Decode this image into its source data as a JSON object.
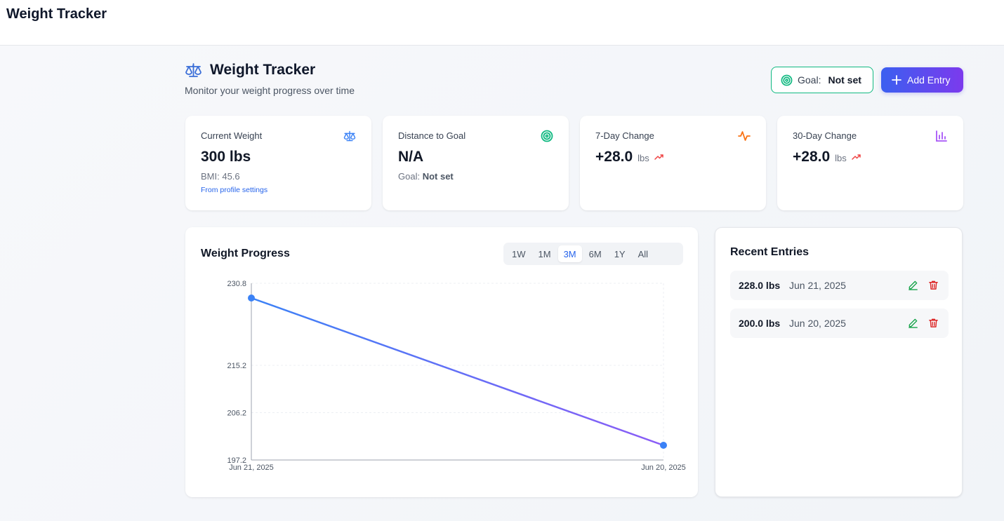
{
  "app": {
    "title": "Weight Tracker"
  },
  "header": {
    "title": "Weight Tracker",
    "subtitle": "Monitor your weight progress over time",
    "icon": "scale-icon"
  },
  "goal_button": {
    "label": "Goal:",
    "value": "Not set",
    "icon": "target-icon"
  },
  "add_button": {
    "label": "Add Entry",
    "icon": "plus-icon"
  },
  "stats": [
    {
      "label": "Current Weight",
      "value": "300 lbs",
      "sub": "BMI: 45.6",
      "link": "From profile settings",
      "icon": "scale-icon",
      "icon_color": "#3b82f6"
    },
    {
      "label": "Distance to Goal",
      "value": "N/A",
      "sub_label": "Goal:",
      "sub_value": "Not set",
      "icon": "target-icon",
      "icon_color": "#10b981"
    },
    {
      "label": "7-Day Change",
      "value": "+28.0",
      "unit": "lbs",
      "icon": "activity-icon",
      "icon_color": "#f97316",
      "trend_color": "#ef4444"
    },
    {
      "label": "30-Day Change",
      "value": "+28.0",
      "unit": "lbs",
      "icon": "bar-chart-icon",
      "icon_color": "#a855f7",
      "trend_color": "#ef4444"
    }
  ],
  "chart_panel": {
    "title": "Weight Progress",
    "ranges": [
      "1W",
      "1M",
      "3M",
      "6M",
      "1Y",
      "All"
    ],
    "active_range": "3M"
  },
  "chart_data": {
    "type": "line",
    "title": "Weight Progress",
    "x": [
      "Jun 21, 2025",
      "Jun 20, 2025"
    ],
    "series": [
      {
        "values": [
          228.0,
          200.0
        ]
      }
    ],
    "y_ticks": [
      "230.8",
      "215.2",
      "206.2",
      "197.2"
    ],
    "ylim": [
      197.2,
      230.8
    ],
    "grid": true,
    "line_gradient": [
      "#3b82f6",
      "#8b5cf6"
    ],
    "point_color": "#3b82f6"
  },
  "recent": {
    "title": "Recent Entries",
    "entries": [
      {
        "weight": "228.0 lbs",
        "date": "Jun 21, 2025"
      },
      {
        "weight": "200.0 lbs",
        "date": "Jun 20, 2025"
      }
    ]
  },
  "colors": {
    "accent": "#3b82f6",
    "goal_border": "#10b981",
    "edit": "#16a34a",
    "delete": "#dc2626"
  }
}
